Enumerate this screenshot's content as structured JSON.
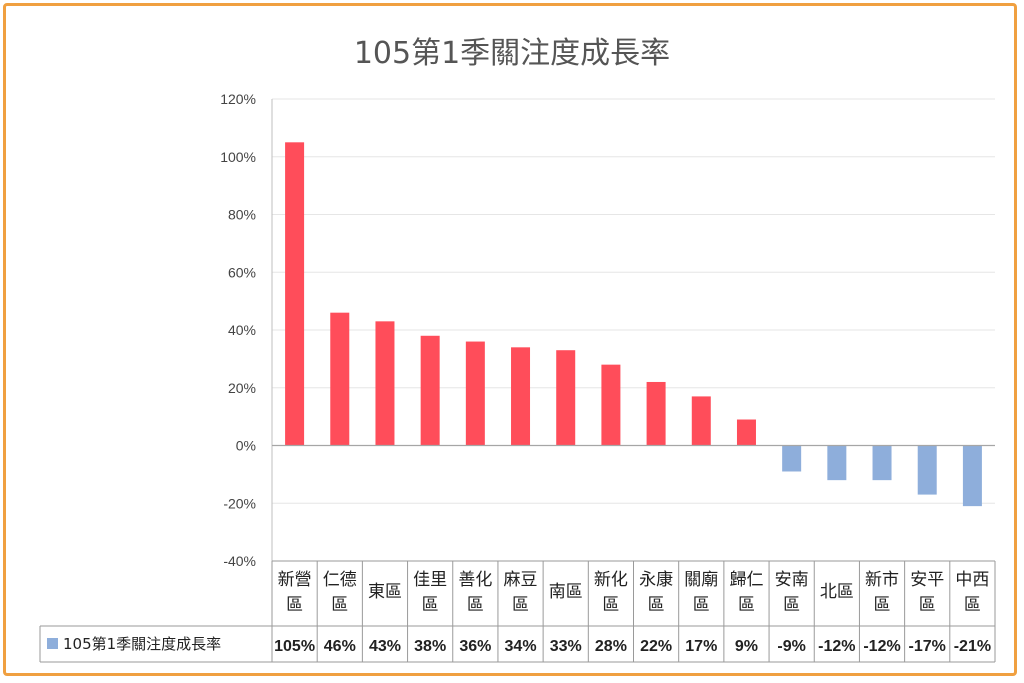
{
  "chart_data": {
    "type": "bar",
    "title": "105第1季關注度成長率",
    "categories": [
      [
        "新營",
        "區"
      ],
      [
        "仁德",
        "區"
      ],
      [
        "東區"
      ],
      [
        "佳里",
        "區"
      ],
      [
        "善化",
        "區"
      ],
      [
        "麻豆",
        "區"
      ],
      [
        "南區"
      ],
      [
        "新化",
        "區"
      ],
      [
        "永康",
        "區"
      ],
      [
        "關廟",
        "區"
      ],
      [
        "歸仁",
        "區"
      ],
      [
        "安南",
        "區"
      ],
      [
        "北區"
      ],
      [
        "新市",
        "區"
      ],
      [
        "安平",
        "區"
      ],
      [
        "中西",
        "區"
      ]
    ],
    "series": [
      {
        "name": "105第1季關注度成長率",
        "values": [
          105,
          46,
          43,
          38,
          36,
          34,
          33,
          28,
          22,
          17,
          9,
          -9,
          -12,
          -12,
          -17,
          -21
        ],
        "labels": [
          "105%",
          "46%",
          "43%",
          "38%",
          "36%",
          "34%",
          "33%",
          "28%",
          "22%",
          "17%",
          "9%",
          "-9%",
          "-12%",
          "-12%",
          "-17%",
          "-21%"
        ]
      }
    ],
    "ylim": [
      -40,
      120
    ],
    "yticks": [
      120,
      100,
      80,
      60,
      40,
      20,
      0,
      -20,
      -40
    ],
    "ytick_labels": [
      "120%",
      "100%",
      "80%",
      "60%",
      "40%",
      "20%",
      "0%",
      "-20%",
      "-40%"
    ],
    "grid": true,
    "legend": "bottom-left, in data table",
    "data_table": true,
    "colors": {
      "positive": "#ff4d5a",
      "negative": "#8eaedb",
      "frame": "#f0a040"
    }
  }
}
